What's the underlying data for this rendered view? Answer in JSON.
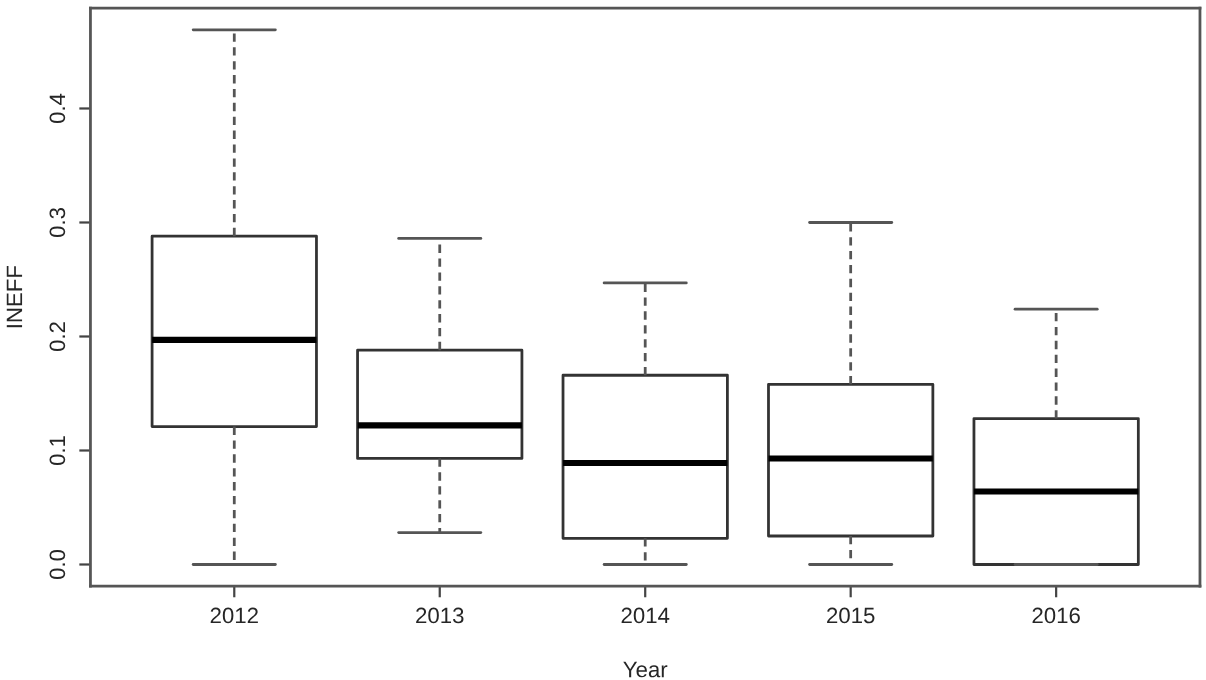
{
  "chart_data": {
    "type": "box",
    "xlabel": "Year",
    "ylabel": "INEFF",
    "categories": [
      "2012",
      "2013",
      "2014",
      "2015",
      "2016"
    ],
    "boxes": [
      {
        "low": 0.0,
        "q1": 0.121,
        "median": 0.197,
        "q3": 0.288,
        "high": 0.469
      },
      {
        "low": 0.028,
        "q1": 0.093,
        "median": 0.122,
        "q3": 0.188,
        "high": 0.286
      },
      {
        "low": 0.0,
        "q1": 0.023,
        "median": 0.089,
        "q3": 0.166,
        "high": 0.247
      },
      {
        "low": 0.0,
        "q1": 0.025,
        "median": 0.093,
        "q3": 0.158,
        "high": 0.3
      },
      {
        "low": 0.0,
        "q1": 0.0,
        "median": 0.064,
        "q3": 0.128,
        "high": 0.224
      }
    ],
    "ylim": [
      -0.019,
      0.488
    ],
    "yticks": [
      {
        "value": 0,
        "label": "0.0"
      },
      0.1,
      0.2,
      0.3,
      0.4
    ],
    "grid": false,
    "legend": false
  }
}
